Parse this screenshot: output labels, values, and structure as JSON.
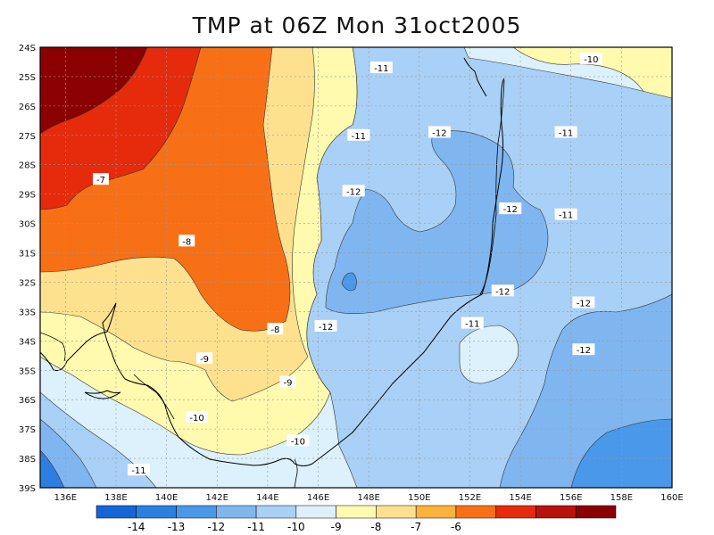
{
  "title": "TMP at 06Z Mon 31oct2005",
  "map": {
    "lon_range": [
      135,
      160
    ],
    "lat_range": [
      -39,
      -24
    ],
    "lon_ticks": [
      "136E",
      "138E",
      "140E",
      "142E",
      "144E",
      "146E",
      "148E",
      "150E",
      "152E",
      "154E",
      "156E",
      "158E",
      "160E"
    ],
    "lat_ticks": [
      "24S",
      "25S",
      "26S",
      "27S",
      "28S",
      "29S",
      "30S",
      "31S",
      "32S",
      "33S",
      "34S",
      "35S",
      "36S",
      "37S",
      "38S",
      "39S"
    ],
    "grid": true,
    "contour_labels": [
      {
        "text": "-11",
        "lon": 148.5,
        "lat": -24.7
      },
      {
        "text": "-10",
        "lon": 156.8,
        "lat": -24.4
      },
      {
        "text": "-11",
        "lon": 147.6,
        "lat": -27.0
      },
      {
        "text": "-12",
        "lon": 150.8,
        "lat": -26.9
      },
      {
        "text": "-11",
        "lon": 155.8,
        "lat": -26.9
      },
      {
        "text": "-7",
        "lon": 137.4,
        "lat": -28.5
      },
      {
        "text": "-12",
        "lon": 147.4,
        "lat": -28.9
      },
      {
        "text": "-12",
        "lon": 153.6,
        "lat": -29.5
      },
      {
        "text": "-11",
        "lon": 155.8,
        "lat": -29.7
      },
      {
        "text": "-8",
        "lon": 140.8,
        "lat": -30.6
      },
      {
        "text": "-12",
        "lon": 153.3,
        "lat": -32.3
      },
      {
        "text": "-12",
        "lon": 156.5,
        "lat": -32.7
      },
      {
        "text": "-12",
        "lon": 146.3,
        "lat": -33.5
      },
      {
        "text": "-11",
        "lon": 152.1,
        "lat": -33.4
      },
      {
        "text": "-8",
        "lon": 144.3,
        "lat": -33.6
      },
      {
        "text": "-12",
        "lon": 156.5,
        "lat": -34.3
      },
      {
        "text": "-9",
        "lon": 141.5,
        "lat": -34.6
      },
      {
        "text": "-9",
        "lon": 144.8,
        "lat": -35.4
      },
      {
        "text": "-10",
        "lon": 141.2,
        "lat": -36.6
      },
      {
        "text": "-10",
        "lon": 145.2,
        "lat": -37.4
      },
      {
        "text": "-11",
        "lon": 138.9,
        "lat": -38.4
      }
    ]
  },
  "colorbar": {
    "colors": [
      "#1565d6",
      "#2c7fe0",
      "#4a98ea",
      "#7fb6f0",
      "#a9d0f6",
      "#dcf1fb",
      "#fffaae",
      "#fde18e",
      "#fbb23b",
      "#f87016",
      "#e52b0c",
      "#b8120a",
      "#8b0000"
    ],
    "labels": [
      "-14",
      "-13",
      "-12",
      "-11",
      "-10",
      "-9",
      "-8",
      "-7",
      "-6"
    ]
  },
  "palette": {
    "p1": "#2c7fe0",
    "p2": "#4a98ea",
    "p3": "#7fb6f0",
    "p4": "#a9d0f6",
    "p5": "#dcf1fb",
    "p6": "#fffaae",
    "p7": "#fde18e",
    "p8": "#fbb23b",
    "p9": "#f87016",
    "p10": "#e52b0c",
    "p11": "#b8120a"
  }
}
